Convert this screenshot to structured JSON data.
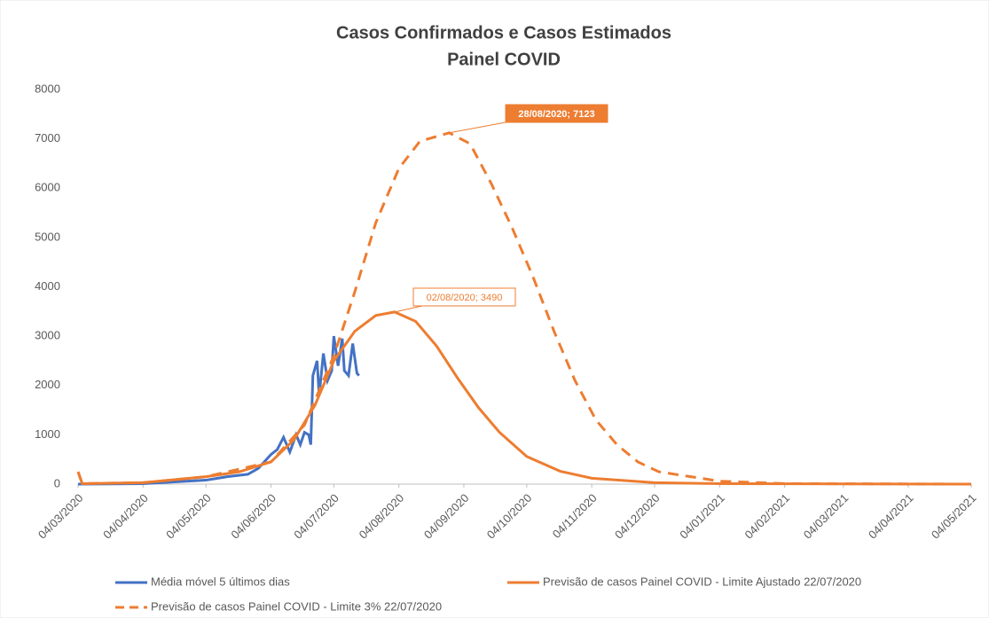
{
  "chart_data": {
    "type": "line",
    "title": "Casos Confirmados e Casos Estimados",
    "subtitle": "Painel COVID",
    "xlim": [
      "04/03/2020",
      "04/05/2021"
    ],
    "xticks": [
      "04/03/2020",
      "04/04/2020",
      "04/05/2020",
      "04/06/2020",
      "04/07/2020",
      "04/08/2020",
      "04/09/2020",
      "04/10/2020",
      "04/11/2020",
      "04/12/2020",
      "04/01/2021",
      "04/02/2021",
      "04/03/2021",
      "04/04/2021",
      "04/05/2021"
    ],
    "ylim": [
      0,
      8000
    ],
    "yticks": [
      0,
      1000,
      2000,
      3000,
      4000,
      5000,
      6000,
      7000,
      8000
    ],
    "grid": false,
    "legend": "bottom",
    "series": [
      {
        "name": "Média móvel 5 últimos dias",
        "color": "#4472c4",
        "dash": false,
        "x": [
          "04/03/2020",
          "04/04/2020",
          "04/05/2020",
          "14/05/2020",
          "24/05/2020",
          "29/05/2020",
          "04/06/2020",
          "07/06/2020",
          "10/06/2020",
          "13/06/2020",
          "16/06/2020",
          "18/06/2020",
          "20/06/2020",
          "22/06/2020",
          "23/06/2020",
          "24/06/2020",
          "26/06/2020",
          "27/06/2020",
          "29/06/2020",
          "01/07/2020",
          "03/07/2020",
          "04/07/2020",
          "06/07/2020",
          "08/07/2020",
          "09/07/2020",
          "11/07/2020",
          "13/07/2020",
          "15/07/2020",
          "16/07/2020"
        ],
        "values": [
          0,
          10,
          80,
          150,
          200,
          320,
          600,
          700,
          950,
          650,
          1000,
          800,
          1050,
          1000,
          800,
          2200,
          2500,
          1800,
          2650,
          2100,
          2300,
          3000,
          2400,
          2950,
          2300,
          2200,
          2850,
          2250,
          2200
        ]
      },
      {
        "name": "Previsão de casos Painel COVID - Limite Ajustado 22/07/2020",
        "color": "#ed7d31",
        "dash": false,
        "x": [
          "04/03/2020",
          "06/03/2020",
          "04/04/2020",
          "04/05/2020",
          "20/05/2020",
          "04/06/2020",
          "15/06/2020",
          "25/06/2020",
          "04/07/2020",
          "14/07/2020",
          "24/07/2020",
          "02/08/2020",
          "12/08/2020",
          "22/08/2020",
          "01/09/2020",
          "11/09/2020",
          "21/09/2020",
          "04/10/2020",
          "20/10/2020",
          "04/11/2020",
          "04/12/2020",
          "04/01/2021",
          "04/05/2021"
        ],
        "values": [
          250,
          10,
          30,
          150,
          250,
          450,
          900,
          1600,
          2500,
          3100,
          3420,
          3490,
          3300,
          2800,
          2150,
          1550,
          1050,
          560,
          260,
          120,
          30,
          8,
          0
        ]
      },
      {
        "name": "Previsão de casos Painel COVID - Limite 3% 22/07/2020",
        "color": "#ed7d31",
        "dash": true,
        "x": [
          "04/03/2020",
          "06/03/2020",
          "04/04/2020",
          "04/05/2020",
          "04/06/2020",
          "20/06/2020",
          "04/07/2020",
          "14/07/2020",
          "24/07/2020",
          "04/08/2020",
          "14/08/2020",
          "28/08/2020",
          "07/09/2020",
          "17/09/2020",
          "27/09/2020",
          "07/10/2020",
          "17/10/2020",
          "27/10/2020",
          "06/11/2020",
          "16/11/2020",
          "26/11/2020",
          "06/12/2020",
          "04/01/2021",
          "04/02/2021",
          "04/05/2021"
        ],
        "values": [
          250,
          10,
          30,
          150,
          450,
          1200,
          2600,
          3900,
          5300,
          6400,
          6950,
          7123,
          6900,
          6100,
          5200,
          4200,
          3100,
          2100,
          1300,
          800,
          450,
          250,
          60,
          10,
          0
        ]
      }
    ],
    "annotations": [
      {
        "label": "28/08/2020; 7123",
        "x": "28/08/2020",
        "y": 7123,
        "filled": true
      },
      {
        "label": "02/08/2020; 3490",
        "x": "02/08/2020",
        "y": 3490,
        "filled": false
      }
    ]
  }
}
